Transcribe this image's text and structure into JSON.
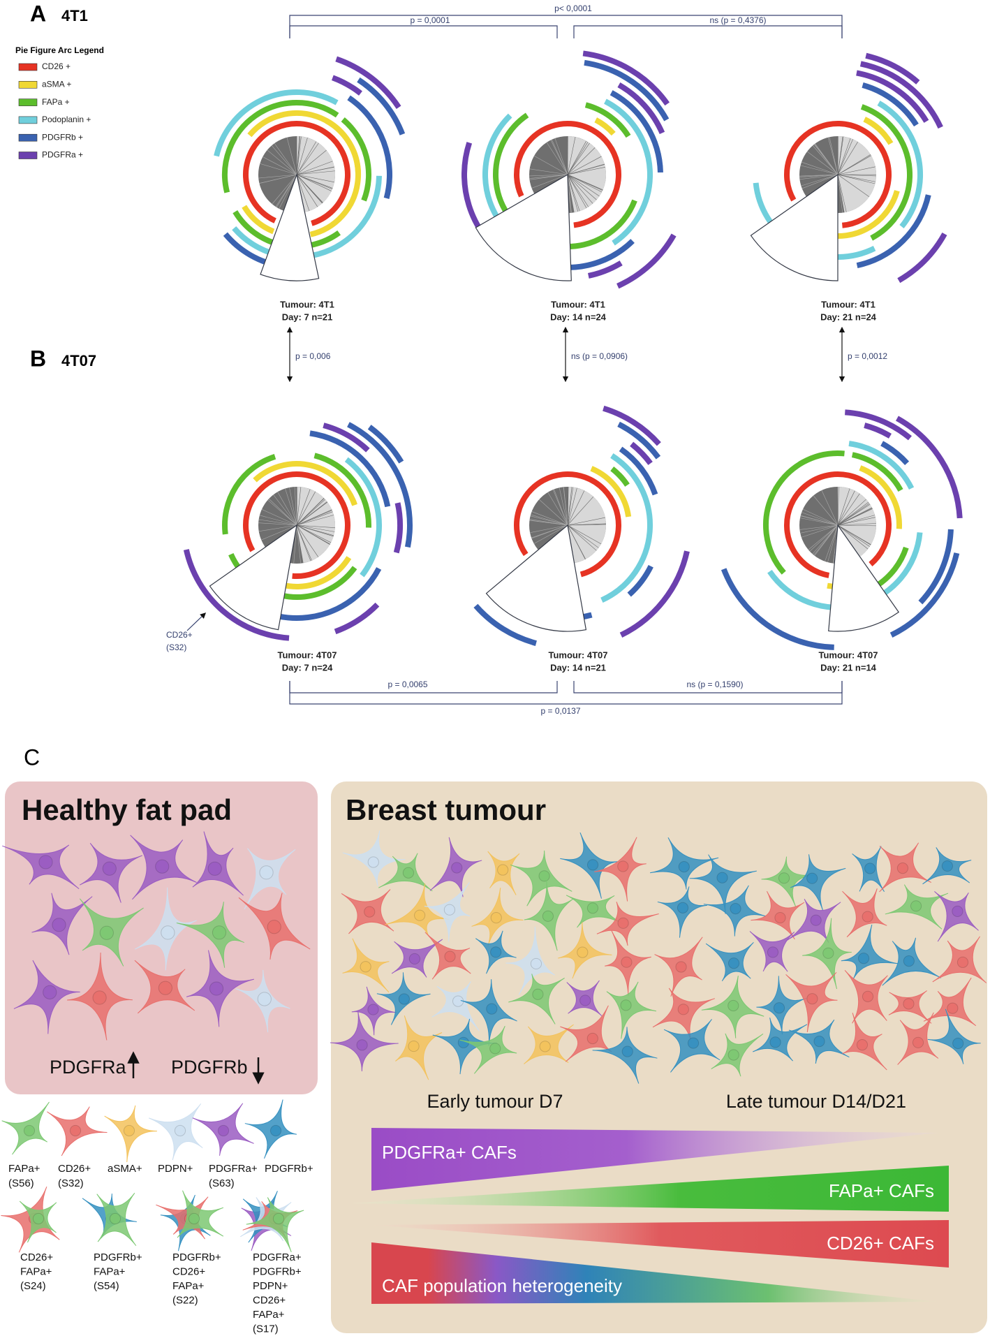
{
  "panel_a": {
    "label": "A",
    "title": "4T1",
    "legend_title": "Pie Figure Arc Legend",
    "legend": [
      {
        "name": "CD26 +",
        "color": "#e63323"
      },
      {
        "name": "aSMA +",
        "color": "#f0d834"
      },
      {
        "name": "FAPa +",
        "color": "#5cbd2c"
      },
      {
        "name": "Podoplanin +",
        "color": "#70cfdc"
      },
      {
        "name": "PDGFRb +",
        "color": "#3a62b0"
      },
      {
        "name": "PDGFRa +",
        "color": "#6b40ae"
      }
    ],
    "pies": [
      {
        "tumour": "Tumour: 4T1",
        "day": "Day: 7  n=21"
      },
      {
        "tumour": "Tumour: 4T1",
        "day": "Day: 14  n=24"
      },
      {
        "tumour": "Tumour: 4T1",
        "day": "Day: 21  n=24"
      }
    ],
    "comparisons": {
      "d7_d14": "p = 0,0001",
      "d14_d21": "ns (p = 0,4376)",
      "d7_d21": "p< 0,0001"
    }
  },
  "between": [
    "p = 0,006",
    "ns (p = 0,0906)",
    "p = 0,0012"
  ],
  "panel_b": {
    "label": "B",
    "title": "4T07",
    "pies": [
      {
        "tumour": "Tumour: 4T07",
        "day": "Day: 7  n=24"
      },
      {
        "tumour": "Tumour: 4T07",
        "day": "Day: 14  n=21"
      },
      {
        "tumour": "Tumour: 4T07",
        "day": "Day: 21  n=14"
      }
    ],
    "annotation": [
      "CD26+",
      "(S32)"
    ],
    "comparisons": {
      "d7_d14": "p = 0,0065",
      "d14_d21": "ns (p = 0,1590)",
      "d7_d21": "p = 0,0137"
    }
  },
  "panel_c": {
    "label": "C",
    "healthy": {
      "title": "Healthy fat pad",
      "markers": [
        "PDGFRa",
        "PDGFRb"
      ]
    },
    "tumour": {
      "title": "Breast tumour",
      "stages": [
        "Early tumour D7",
        "Late tumour D14/D21"
      ],
      "trends": [
        "PDGFRa+ CAFs",
        "FAPa+ CAFs",
        "CD26+ CAFs",
        "CAF population heterogeneity"
      ]
    },
    "cell_legend": [
      [
        "FAPa+",
        "(S56)"
      ],
      [
        "CD26+",
        "(S32)"
      ],
      [
        "aSMA+"
      ],
      [
        "PDPN+"
      ],
      [
        "PDGFRa+",
        "(S63)"
      ],
      [
        "PDGFRb+"
      ],
      [
        "CD26+",
        "FAPa+",
        "(S24)"
      ],
      [
        "PDGFRb+",
        "FAPa+",
        "(S54)"
      ],
      [
        "PDGFRb+",
        "CD26+",
        "FAPa+",
        "(S22)"
      ],
      [
        "PDGFRa+",
        "PDGFRb+",
        "PDPN+",
        "CD26+",
        "FAPa+",
        "(S17)"
      ]
    ]
  }
}
